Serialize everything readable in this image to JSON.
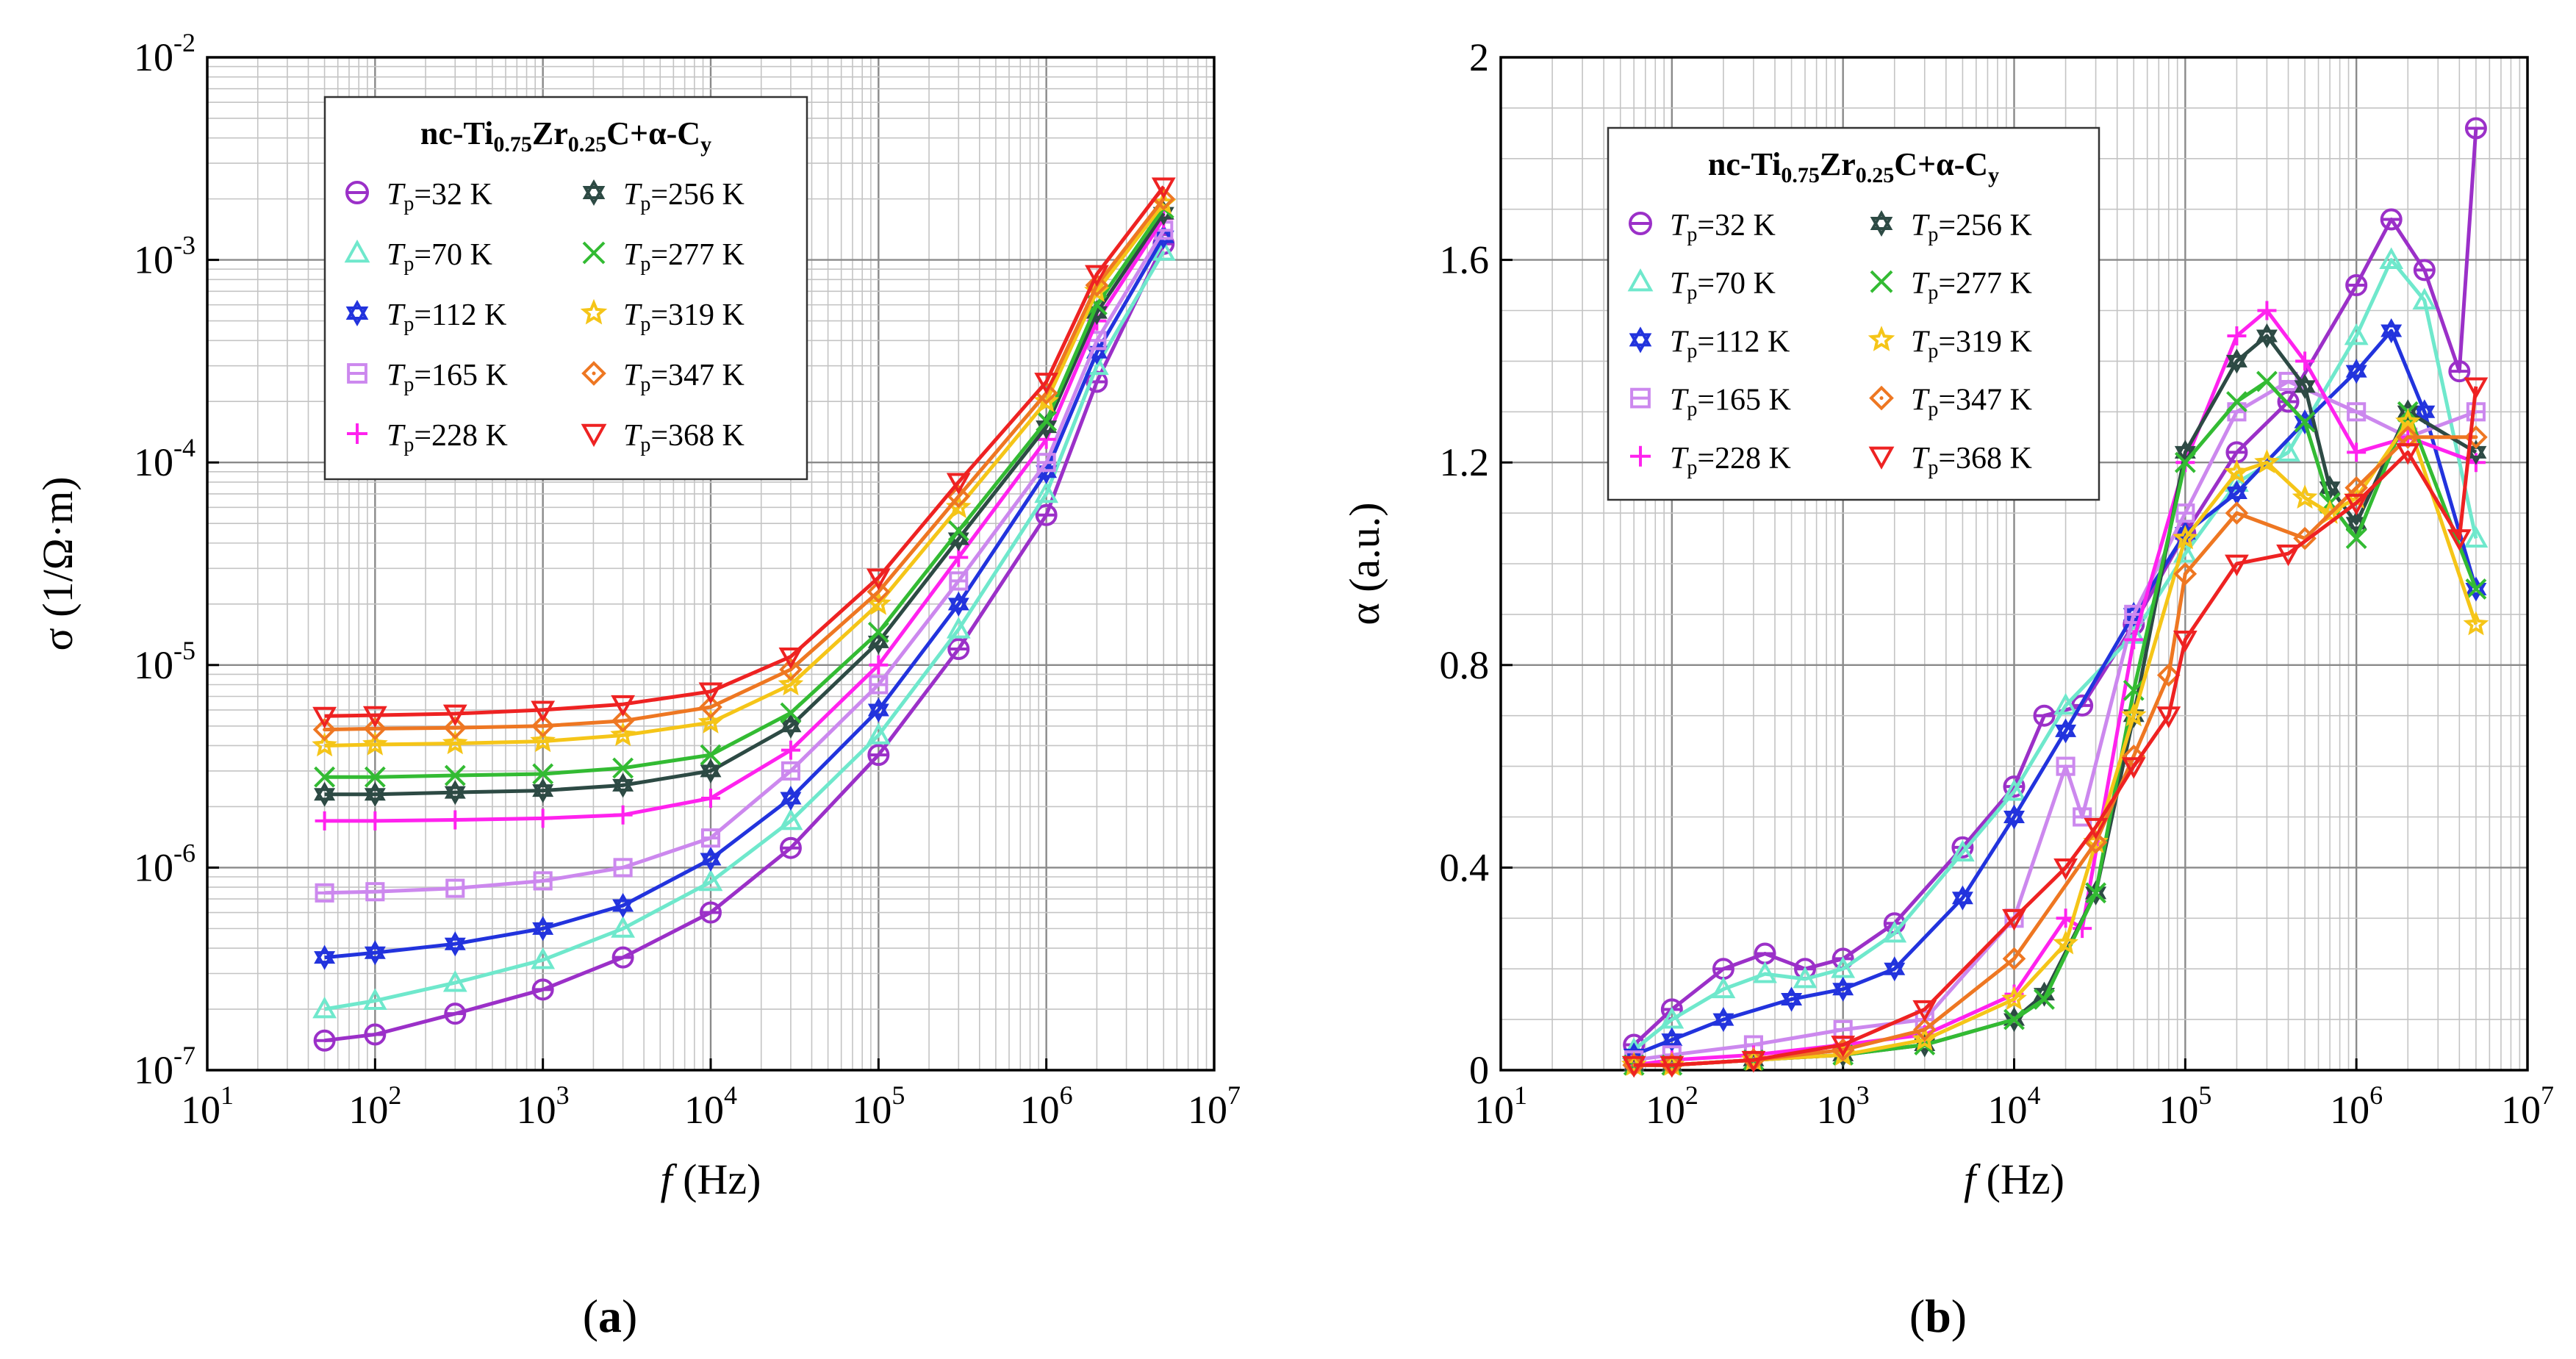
{
  "chart_data": [
    {
      "type": "line",
      "panel": "(a)",
      "panel_letter": "a",
      "xscale": "log",
      "yscale": "log",
      "xlim": [
        10,
        10000000
      ],
      "ylim": [
        1e-07,
        0.01
      ],
      "xticks": [
        {
          "v": 10,
          "base": "10",
          "exp": "1"
        },
        {
          "v": 100,
          "base": "10",
          "exp": "2"
        },
        {
          "v": 1000,
          "base": "10",
          "exp": "3"
        },
        {
          "v": 10000,
          "base": "10",
          "exp": "4"
        },
        {
          "v": 100000,
          "base": "10",
          "exp": "5"
        },
        {
          "v": 1000000,
          "base": "10",
          "exp": "6"
        },
        {
          "v": 10000000,
          "base": "10",
          "exp": "7"
        }
      ],
      "yticks": [
        {
          "v": 1e-07,
          "base": "10",
          "exp": "-7"
        },
        {
          "v": 1e-06,
          "base": "10",
          "exp": "-6"
        },
        {
          "v": 1e-05,
          "base": "10",
          "exp": "-5"
        },
        {
          "v": 0.0001,
          "base": "10",
          "exp": "-4"
        },
        {
          "v": 0.001,
          "base": "10",
          "exp": "-3"
        },
        {
          "v": 0.01,
          "base": "10",
          "exp": "-2"
        }
      ],
      "xlabel_italic": "f",
      "xlabel_rest": " (Hz)",
      "ylabel": "σ (1/Ω·m)",
      "grid": true,
      "legend_title": {
        "p1": "nc-Ti",
        "s1": "0.75",
        "p2": "Zr",
        "s2": "0.25",
        "p3": "C+α-C",
        "s3": "y"
      },
      "legend_placement": "top-left",
      "series": [
        {
          "name": "Tp=32 K",
          "label_T": "T",
          "label_sub": "p",
          "label_rest": "=32 K",
          "color": "#9b30c8",
          "marker": "circle",
          "x": [
            50,
            100,
            300,
            1000,
            3000,
            10000,
            30000,
            100000,
            300000,
            1000000,
            2000000,
            5000000
          ],
          "y": [
            1.4e-07,
            1.5e-07,
            1.9e-07,
            2.5e-07,
            3.6e-07,
            6e-07,
            1.25e-06,
            3.6e-06,
            1.2e-05,
            5.5e-05,
            0.00025,
            0.0012
          ]
        },
        {
          "name": "Tp=70 K",
          "label_T": "T",
          "label_sub": "p",
          "label_rest": "=70 K",
          "color": "#6fe8cc",
          "marker": "triangle",
          "x": [
            50,
            100,
            300,
            1000,
            3000,
            10000,
            30000,
            100000,
            300000,
            1000000,
            2000000,
            5000000
          ],
          "y": [
            2e-07,
            2.2e-07,
            2.7e-07,
            3.5e-07,
            5e-07,
            8.5e-07,
            1.7e-06,
            4.5e-06,
            1.5e-05,
            7e-05,
            0.0003,
            0.0011
          ]
        },
        {
          "name": "Tp=112 K",
          "label_T": "T",
          "label_sub": "p",
          "label_rest": "=112 K",
          "color": "#2233dd",
          "marker": "star6",
          "x": [
            50,
            100,
            300,
            1000,
            3000,
            10000,
            30000,
            100000,
            300000,
            1000000,
            2000000,
            5000000
          ],
          "y": [
            3.6e-07,
            3.8e-07,
            4.2e-07,
            5e-07,
            6.5e-07,
            1.1e-06,
            2.2e-06,
            6e-06,
            2e-05,
            9e-05,
            0.00035,
            0.0013
          ]
        },
        {
          "name": "Tp=165 K",
          "label_T": "T",
          "label_sub": "p",
          "label_rest": "=165 K",
          "color": "#cc88ee",
          "marker": "square",
          "x": [
            50,
            100,
            300,
            1000,
            3000,
            10000,
            30000,
            100000,
            300000,
            1000000,
            2000000,
            5000000
          ],
          "y": [
            7.5e-07,
            7.6e-07,
            7.9e-07,
            8.6e-07,
            1e-06,
            1.4e-06,
            3e-06,
            8e-06,
            2.6e-05,
            0.0001,
            0.0004,
            0.0014
          ]
        },
        {
          "name": "Tp=228 K",
          "label_T": "T",
          "label_sub": "p",
          "label_rest": "=228 K",
          "color": "#ff22ee",
          "marker": "plus",
          "x": [
            50,
            100,
            300,
            1000,
            3000,
            10000,
            30000,
            100000,
            300000,
            1000000,
            2000000,
            5000000
          ],
          "y": [
            1.7e-06,
            1.7e-06,
            1.72e-06,
            1.75e-06,
            1.82e-06,
            2.2e-06,
            3.8e-06,
            1e-05,
            3.4e-05,
            0.00013,
            0.0005,
            0.0016
          ]
        },
        {
          "name": "Tp=256 K",
          "label_T": "T",
          "label_sub": "p",
          "label_rest": "=256 K",
          "color": "#2d4a44",
          "marker": "star6",
          "x": [
            50,
            100,
            300,
            1000,
            3000,
            10000,
            30000,
            100000,
            300000,
            1000000,
            2000000,
            5000000
          ],
          "y": [
            2.3e-06,
            2.3e-06,
            2.35e-06,
            2.4e-06,
            2.55e-06,
            3e-06,
            5e-06,
            1.3e-05,
            4.2e-05,
            0.00015,
            0.00055,
            0.0017
          ]
        },
        {
          "name": "Tp=277 K",
          "label_T": "T",
          "label_sub": "p",
          "label_rest": "=277 K",
          "color": "#33bb33",
          "marker": "x",
          "x": [
            50,
            100,
            300,
            1000,
            3000,
            10000,
            30000,
            100000,
            300000,
            1000000,
            2000000,
            5000000
          ],
          "y": [
            2.8e-06,
            2.8e-06,
            2.85e-06,
            2.9e-06,
            3.1e-06,
            3.6e-06,
            5.8e-06,
            1.45e-05,
            4.6e-05,
            0.00016,
            0.0006,
            0.0018
          ]
        },
        {
          "name": "Tp=319 K",
          "label_T": "T",
          "label_sub": "p",
          "label_rest": "=319 K",
          "color": "#f5c518",
          "marker": "star5",
          "x": [
            50,
            100,
            300,
            1000,
            3000,
            10000,
            30000,
            100000,
            300000,
            1000000,
            2000000,
            5000000
          ],
          "y": [
            4e-06,
            4.05e-06,
            4.1e-06,
            4.2e-06,
            4.5e-06,
            5.2e-06,
            8e-06,
            2e-05,
            6e-05,
            0.0002,
            0.0007,
            0.0019
          ]
        },
        {
          "name": "Tp=347 K",
          "label_T": "T",
          "label_sub": "p",
          "label_rest": "=347 K",
          "color": "#ee7722",
          "marker": "diamond",
          "x": [
            50,
            100,
            300,
            1000,
            3000,
            10000,
            30000,
            100000,
            300000,
            1000000,
            2000000,
            5000000
          ],
          "y": [
            4.8e-06,
            4.85e-06,
            4.9e-06,
            5e-06,
            5.3e-06,
            6.2e-06,
            9.5e-06,
            2.3e-05,
            6.8e-05,
            0.00022,
            0.00075,
            0.002
          ]
        },
        {
          "name": "Tp=368 K",
          "label_T": "T",
          "label_sub": "p",
          "label_rest": "=368 K",
          "color": "#ee2222",
          "marker": "triangle-down",
          "x": [
            50,
            100,
            300,
            1000,
            3000,
            10000,
            30000,
            100000,
            300000,
            1000000,
            2000000,
            5000000
          ],
          "y": [
            5.6e-06,
            5.65e-06,
            5.75e-06,
            6e-06,
            6.4e-06,
            7.4e-06,
            1.1e-05,
            2.7e-05,
            8e-05,
            0.00025,
            0.00085,
            0.0023
          ]
        }
      ]
    },
    {
      "type": "line",
      "panel": "(b)",
      "panel_letter": "b",
      "xscale": "log",
      "yscale": "linear",
      "xlim": [
        10,
        10000000
      ],
      "ylim": [
        0,
        2
      ],
      "xticks": [
        {
          "v": 10,
          "base": "10",
          "exp": "1"
        },
        {
          "v": 100,
          "base": "10",
          "exp": "2"
        },
        {
          "v": 1000,
          "base": "10",
          "exp": "3"
        },
        {
          "v": 10000,
          "base": "10",
          "exp": "4"
        },
        {
          "v": 100000,
          "base": "10",
          "exp": "5"
        },
        {
          "v": 1000000,
          "base": "10",
          "exp": "6"
        },
        {
          "v": 10000000,
          "base": "10",
          "exp": "7"
        }
      ],
      "yticks": [
        {
          "v": 0,
          "text": "0"
        },
        {
          "v": 0.4,
          "text": "0.4"
        },
        {
          "v": 0.8,
          "text": "0.8"
        },
        {
          "v": 1.2,
          "text": "1.2"
        },
        {
          "v": 1.6,
          "text": "1.6"
        },
        {
          "v": 2,
          "text": "2"
        }
      ],
      "xlabel_italic": "f",
      "xlabel_rest": " (Hz)",
      "ylabel": "α (a.u.)",
      "grid": true,
      "legend_title": {
        "p1": "nc-Ti",
        "s1": "0.75",
        "p2": "Zr",
        "s2": "0.25",
        "p3": "C+α-C",
        "s3": "y"
      },
      "legend_placement": "top-left",
      "series": [
        {
          "name": "Tp=32 K",
          "label_T": "T",
          "label_sub": "p",
          "label_rest": "=32 K",
          "color": "#9b30c8",
          "marker": "circle",
          "x": [
            60,
            100,
            200,
            350,
            600,
            1000,
            2000,
            5000,
            10000,
            15000,
            25000,
            50000,
            100000,
            200000,
            400000,
            1000000,
            1600000,
            2500000,
            4000000,
            5000000
          ],
          "y": [
            0.05,
            0.12,
            0.2,
            0.23,
            0.2,
            0.22,
            0.29,
            0.44,
            0.56,
            0.7,
            0.72,
            0.88,
            1.06,
            1.22,
            1.32,
            1.55,
            1.68,
            1.58,
            1.38,
            1.86
          ]
        },
        {
          "name": "Tp=70 K",
          "label_T": "T",
          "label_sub": "p",
          "label_rest": "=70 K",
          "color": "#6fe8cc",
          "marker": "triangle",
          "x": [
            60,
            100,
            200,
            350,
            600,
            1000,
            2000,
            5000,
            10000,
            20000,
            50000,
            100000,
            200000,
            400000,
            1000000,
            1600000,
            2500000,
            5000000
          ],
          "y": [
            0.04,
            0.1,
            0.16,
            0.19,
            0.18,
            0.2,
            0.27,
            0.43,
            0.55,
            0.72,
            0.86,
            1.02,
            1.16,
            1.22,
            1.45,
            1.6,
            1.52,
            1.05
          ]
        },
        {
          "name": "Tp=112 K",
          "label_T": "T",
          "label_sub": "p",
          "label_rest": "=112 K",
          "color": "#2233dd",
          "marker": "star6",
          "x": [
            60,
            100,
            200,
            500,
            1000,
            2000,
            5000,
            10000,
            20000,
            50000,
            100000,
            200000,
            500000,
            1000000,
            1600000,
            2500000,
            5000000
          ],
          "y": [
            0.03,
            0.06,
            0.1,
            0.14,
            0.16,
            0.2,
            0.34,
            0.5,
            0.67,
            0.9,
            1.06,
            1.14,
            1.28,
            1.38,
            1.46,
            1.3,
            0.95
          ]
        },
        {
          "name": "Tp=165 K",
          "label_T": "T",
          "label_sub": "p",
          "label_rest": "=165 K",
          "color": "#cc88ee",
          "marker": "square",
          "x": [
            60,
            100,
            300,
            1000,
            3000,
            10000,
            20000,
            25000,
            50000,
            100000,
            200000,
            400000,
            1000000,
            2000000,
            5000000
          ],
          "y": [
            0.02,
            0.03,
            0.05,
            0.08,
            0.1,
            0.3,
            0.6,
            0.5,
            0.9,
            1.1,
            1.3,
            1.36,
            1.3,
            1.25,
            1.3
          ]
        },
        {
          "name": "Tp=228 K",
          "label_T": "T",
          "label_sub": "p",
          "label_rest": "=228 K",
          "color": "#ff22ee",
          "marker": "plus",
          "x": [
            60,
            100,
            300,
            1000,
            3000,
            10000,
            20000,
            25000,
            50000,
            100000,
            200000,
            300000,
            500000,
            1000000,
            2000000,
            5000000
          ],
          "y": [
            0.01,
            0.02,
            0.03,
            0.05,
            0.07,
            0.15,
            0.3,
            0.28,
            0.85,
            1.2,
            1.45,
            1.5,
            1.4,
            1.22,
            1.25,
            1.2
          ]
        },
        {
          "name": "Tp=256 K",
          "label_T": "T",
          "label_sub": "p",
          "label_rest": "=256 K",
          "color": "#2d4a44",
          "marker": "star6",
          "x": [
            60,
            100,
            300,
            1000,
            3000,
            10000,
            15000,
            30000,
            50000,
            100000,
            200000,
            300000,
            500000,
            700000,
            1000000,
            2000000,
            5000000
          ],
          "y": [
            0.01,
            0.01,
            0.02,
            0.03,
            0.05,
            0.1,
            0.15,
            0.35,
            0.7,
            1.22,
            1.4,
            1.45,
            1.35,
            1.15,
            1.08,
            1.3,
            1.22
          ]
        },
        {
          "name": "Tp=277 K",
          "label_T": "T",
          "label_sub": "p",
          "label_rest": "=277 K",
          "color": "#33bb33",
          "marker": "x",
          "x": [
            60,
            100,
            300,
            1000,
            3000,
            10000,
            15000,
            30000,
            50000,
            100000,
            200000,
            300000,
            500000,
            700000,
            1000000,
            2000000,
            5000000
          ],
          "y": [
            0.01,
            0.01,
            0.02,
            0.03,
            0.05,
            0.1,
            0.14,
            0.35,
            0.75,
            1.2,
            1.32,
            1.36,
            1.28,
            1.12,
            1.05,
            1.3,
            0.95
          ]
        },
        {
          "name": "Tp=319 K",
          "label_T": "T",
          "label_sub": "p",
          "label_rest": "=319 K",
          "color": "#f5c518",
          "marker": "star5",
          "x": [
            60,
            100,
            300,
            1000,
            3000,
            10000,
            20000,
            30000,
            50000,
            100000,
            200000,
            300000,
            500000,
            700000,
            1000000,
            2000000,
            5000000
          ],
          "y": [
            0.01,
            0.01,
            0.02,
            0.03,
            0.06,
            0.14,
            0.25,
            0.45,
            0.7,
            1.05,
            1.18,
            1.2,
            1.13,
            1.1,
            1.13,
            1.28,
            0.88
          ]
        },
        {
          "name": "Tp=347 K",
          "label_T": "T",
          "label_sub": "p",
          "label_rest": "=347 K",
          "color": "#ee7722",
          "marker": "diamond",
          "x": [
            60,
            100,
            300,
            1000,
            3000,
            10000,
            30000,
            50000,
            80000,
            100000,
            200000,
            500000,
            1000000,
            2000000,
            5000000
          ],
          "y": [
            0.01,
            0.01,
            0.02,
            0.04,
            0.08,
            0.22,
            0.45,
            0.62,
            0.78,
            0.98,
            1.1,
            1.05,
            1.15,
            1.25,
            1.25
          ]
        },
        {
          "name": "Tp=368 K",
          "label_T": "T",
          "label_sub": "p",
          "label_rest": "=368 K",
          "color": "#ee2222",
          "marker": "triangle-down",
          "x": [
            60,
            100,
            300,
            1000,
            3000,
            10000,
            20000,
            30000,
            50000,
            80000,
            100000,
            200000,
            400000,
            1000000,
            2000000,
            4000000,
            5000000
          ],
          "y": [
            0.01,
            0.01,
            0.02,
            0.05,
            0.12,
            0.3,
            0.4,
            0.48,
            0.6,
            0.7,
            0.85,
            1.0,
            1.02,
            1.12,
            1.22,
            1.05,
            1.35
          ]
        }
      ]
    }
  ]
}
